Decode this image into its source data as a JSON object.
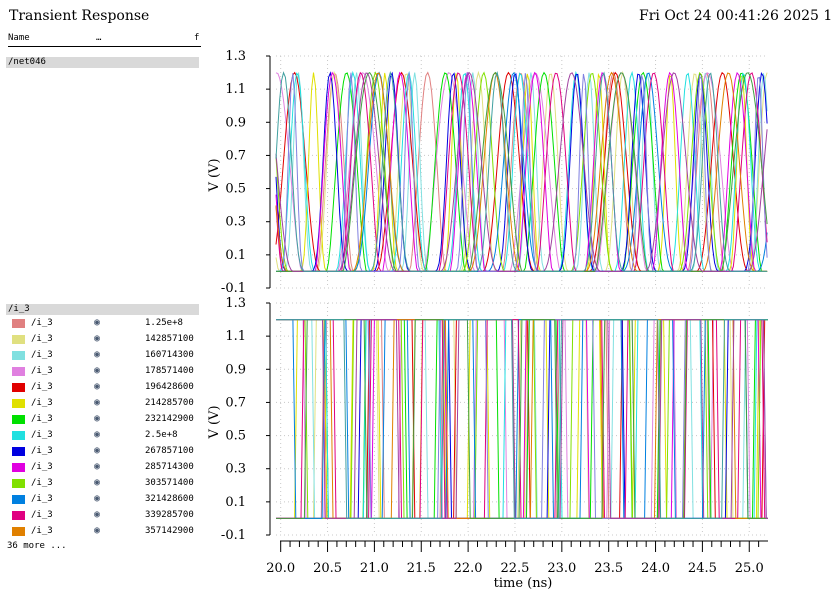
{
  "window": {
    "title": "Transient Response",
    "timestamp": "Fri Oct 24 00:41:26 2025  1"
  },
  "legend": {
    "columns": {
      "name": "Name",
      "ellipsis": "…",
      "flag": "f"
    },
    "group_top": "/net046",
    "group_bottom": "/i_3",
    "more": "36 more ...",
    "items": [
      {
        "name": "/i_3",
        "value": "1.25e+8",
        "color": "#e08080"
      },
      {
        "name": "/i_3",
        "value": "142857100",
        "color": "#e0e080"
      },
      {
        "name": "/i_3",
        "value": "160714300",
        "color": "#80e0e0"
      },
      {
        "name": "/i_3",
        "value": "178571400",
        "color": "#e080e0"
      },
      {
        "name": "/i_3",
        "value": "196428600",
        "color": "#e00000"
      },
      {
        "name": "/i_3",
        "value": "214285700",
        "color": "#e0e000"
      },
      {
        "name": "/i_3",
        "value": "232142900",
        "color": "#00e000"
      },
      {
        "name": "/i_3",
        "value": "2.5e+8",
        "color": "#20e0e0"
      },
      {
        "name": "/i_3",
        "value": "267857100",
        "color": "#0000e0"
      },
      {
        "name": "/i_3",
        "value": "285714300",
        "color": "#e000e0"
      },
      {
        "name": "/i_3",
        "value": "303571400",
        "color": "#80e000"
      },
      {
        "name": "/i_3",
        "value": "321428600",
        "color": "#0080e0"
      },
      {
        "name": "/i_3",
        "value": "339285700",
        "color": "#e00080"
      },
      {
        "name": "/i_3",
        "value": "357142900",
        "color": "#e08000"
      }
    ]
  },
  "chart_data": [
    {
      "type": "line",
      "ylabel": "V (V)",
      "ylim": [
        -0.1,
        1.3
      ],
      "yticks": [
        "1.3",
        "1.1",
        "0.9",
        "0.7",
        "0.5",
        "0.3",
        "0.1",
        "-0.1"
      ],
      "xlim": [
        19.95,
        25.2
      ],
      "grid": true,
      "waveform": "analog pulses 0 to 1.2 V"
    },
    {
      "type": "line",
      "ylabel": "V (V)",
      "xlabel": "time (ns)",
      "ylim": [
        -0.1,
        1.3
      ],
      "yticks": [
        "1.3",
        "1.1",
        "0.9",
        "0.7",
        "0.5",
        "0.3",
        "0.1",
        "-0.1"
      ],
      "xlim": [
        19.95,
        25.2
      ],
      "xticks": [
        "20.0",
        "20.5",
        "21.0",
        "21.5",
        "22.0",
        "22.5",
        "23.0",
        "23.5",
        "24.0",
        "24.5",
        "25.0"
      ],
      "grid": true,
      "waveform": "digital square waves 0 to 1.2 V"
    }
  ],
  "trace_colors": [
    "#e08080",
    "#e0e080",
    "#80e0e0",
    "#e080e0",
    "#e00000",
    "#e0e000",
    "#00e000",
    "#20e0e0",
    "#0000e0",
    "#e000e0",
    "#80e000",
    "#0080e0",
    "#e00080",
    "#e08000",
    "#8080e0",
    "#40a040",
    "#a040a0",
    "#40a0a0"
  ]
}
